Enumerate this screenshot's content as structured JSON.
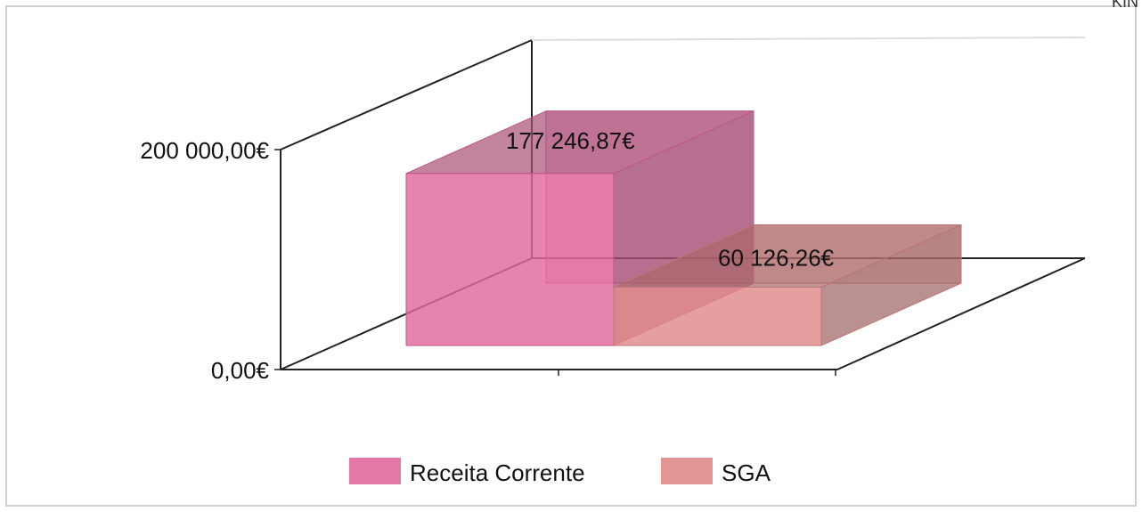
{
  "chart_data": {
    "type": "bar",
    "subtype": "3d-column-clustered",
    "categories": [
      ""
    ],
    "series": [
      {
        "name": "Receita Corrente",
        "values": [
          177246.87
        ],
        "label": "177 246,87€",
        "color": "#e0689c"
      },
      {
        "name": "SGA",
        "values": [
          60126.26
        ],
        "label": "60 126,26€",
        "color": "#e08a8a"
      }
    ],
    "y_ticks": [
      {
        "value": 0,
        "label": "0,00€"
      },
      {
        "value": 200000,
        "label": "200 000,00€"
      }
    ],
    "ylim": [
      0,
      200000
    ],
    "title": "",
    "xlabel": "",
    "ylabel": "",
    "legend_position": "bottom",
    "grid": true
  },
  "corner_text": "KIN"
}
